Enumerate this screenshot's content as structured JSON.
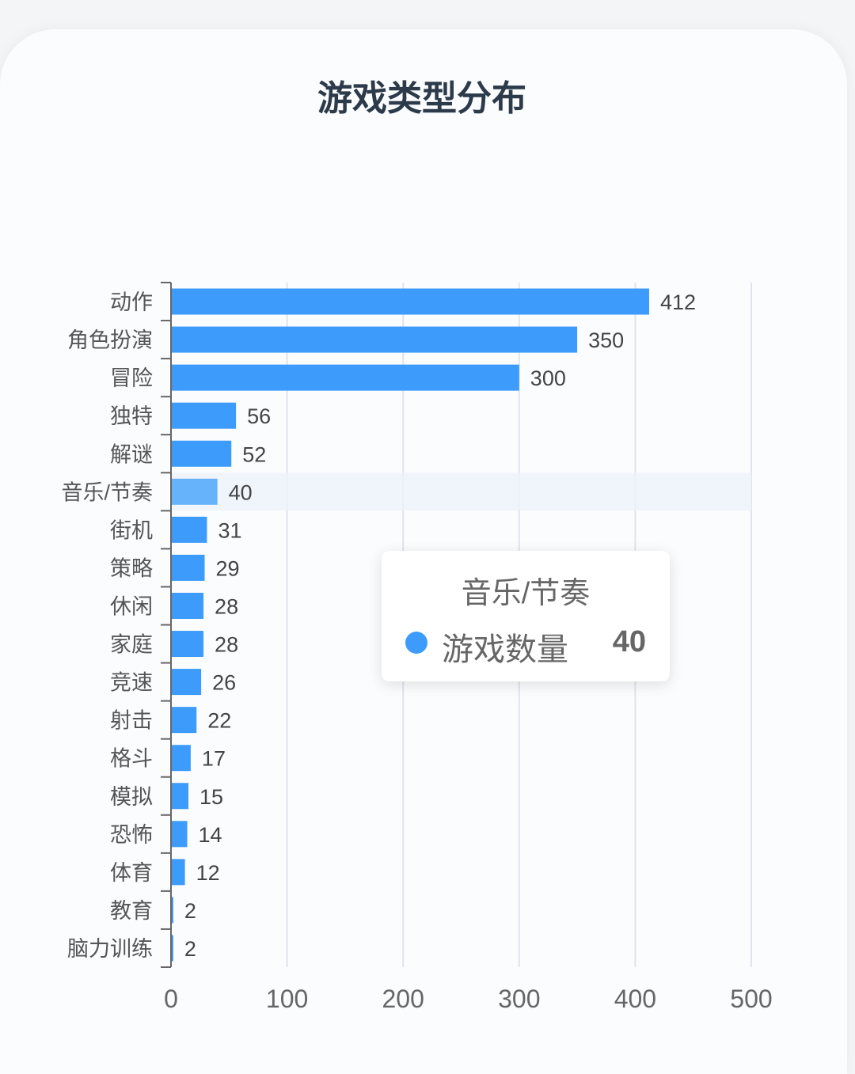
{
  "chart_data": {
    "type": "bar",
    "orientation": "horizontal",
    "title": "游戏类型分布",
    "categories": [
      "动作",
      "角色扮演",
      "冒险",
      "独特",
      "解谜",
      "音乐/节奏",
      "街机",
      "策略",
      "休闲",
      "家庭",
      "竞速",
      "射击",
      "格斗",
      "模拟",
      "恐怖",
      "体育",
      "教育",
      "脑力训练"
    ],
    "series": [
      {
        "name": "游戏数量",
        "values": [
          412,
          350,
          300,
          56,
          52,
          40,
          31,
          29,
          28,
          28,
          26,
          22,
          17,
          15,
          14,
          12,
          2,
          2
        ]
      }
    ],
    "xlim": [
      0,
      500
    ],
    "xticks": [
      0,
      100,
      200,
      300,
      400,
      500
    ],
    "grid": true,
    "highlighted_category": "音乐/节奏",
    "colors": {
      "bar": "#3d9cfb",
      "bar_highlight": "#66b3fc",
      "text": "#555555"
    }
  },
  "tooltip": {
    "title": "音乐/节奏",
    "series_name": "游戏数量",
    "value": "40"
  }
}
